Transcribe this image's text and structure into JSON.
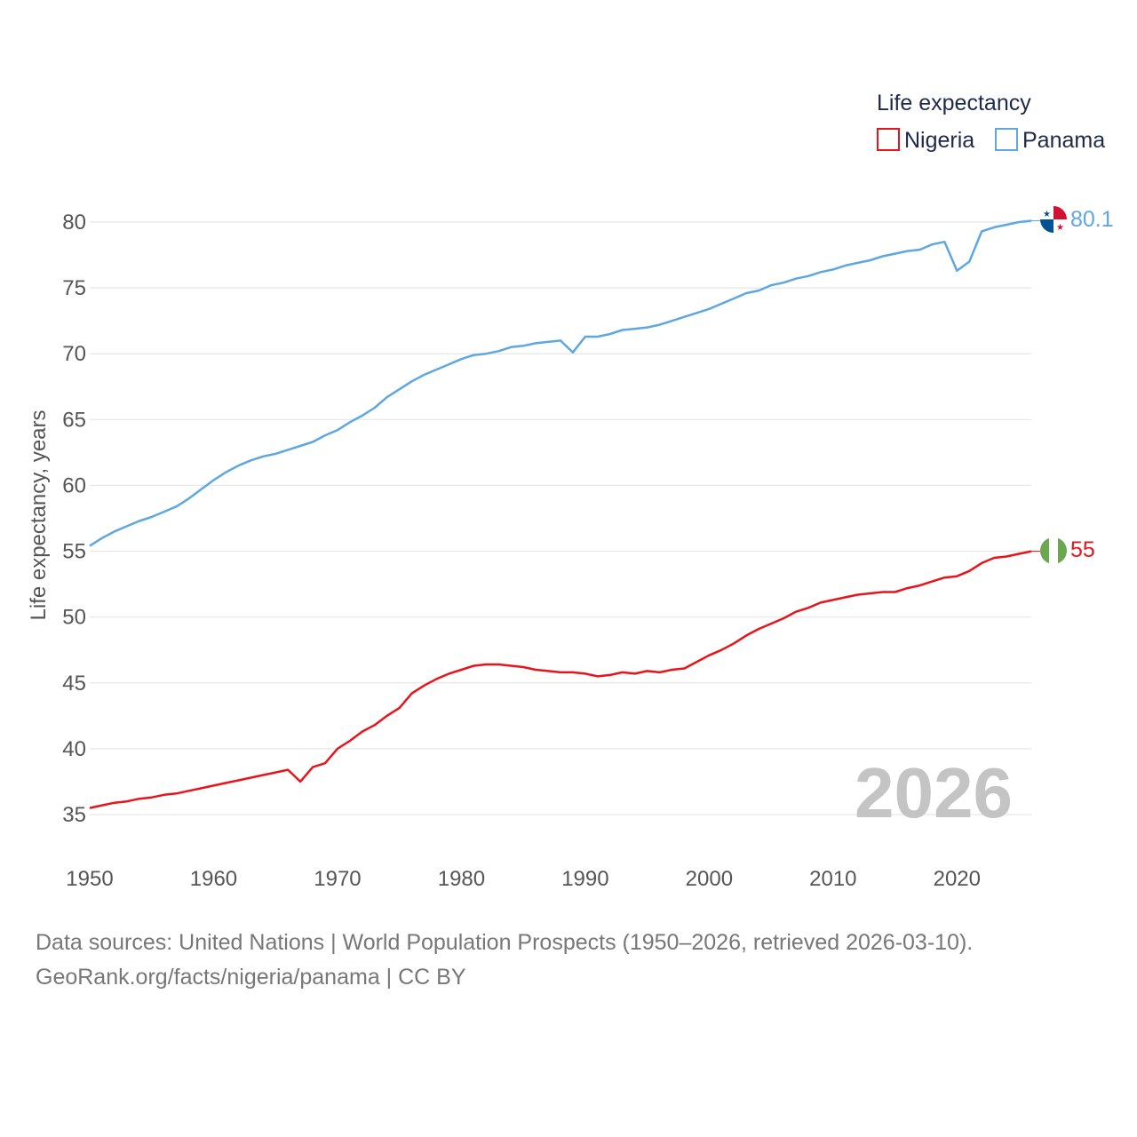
{
  "chart_data": {
    "type": "line",
    "legend_title": "Life expectancy",
    "ylabel": "Life expectancy, years",
    "xlim": [
      1950,
      2026
    ],
    "ylim": [
      32,
      83
    ],
    "yticks": [
      35,
      40,
      45,
      50,
      55,
      60,
      65,
      70,
      75,
      80
    ],
    "xticks": [
      1950,
      1960,
      1970,
      1980,
      1990,
      2000,
      2010,
      2020
    ],
    "year_label": "2026",
    "series": [
      {
        "name": "Nigeria",
        "color": "#e8141c",
        "end_label": "55",
        "x": [
          1950,
          1951,
          1952,
          1953,
          1954,
          1955,
          1956,
          1957,
          1958,
          1959,
          1960,
          1961,
          1962,
          1963,
          1964,
          1965,
          1966,
          1967,
          1968,
          1969,
          1970,
          1971,
          1972,
          1973,
          1974,
          1975,
          1976,
          1977,
          1978,
          1979,
          1980,
          1981,
          1982,
          1983,
          1984,
          1985,
          1986,
          1987,
          1988,
          1989,
          1990,
          1991,
          1992,
          1993,
          1994,
          1995,
          1996,
          1997,
          1998,
          1999,
          2000,
          2001,
          2002,
          2003,
          2004,
          2005,
          2006,
          2007,
          2008,
          2009,
          2010,
          2011,
          2012,
          2013,
          2014,
          2015,
          2016,
          2017,
          2018,
          2019,
          2020,
          2021,
          2022,
          2023,
          2024,
          2025,
          2026
        ],
        "y": [
          35.5,
          35.7,
          35.9,
          36.0,
          36.2,
          36.3,
          36.5,
          36.6,
          36.8,
          37.0,
          37.2,
          37.4,
          37.6,
          37.8,
          38.0,
          38.2,
          38.4,
          37.5,
          38.6,
          38.9,
          40.0,
          40.6,
          41.3,
          41.8,
          42.5,
          43.1,
          44.2,
          44.8,
          45.3,
          45.7,
          46.0,
          46.3,
          46.4,
          46.4,
          46.3,
          46.2,
          46.0,
          45.9,
          45.8,
          45.8,
          45.7,
          45.5,
          45.6,
          45.8,
          45.7,
          45.9,
          45.8,
          46.0,
          46.1,
          46.6,
          47.1,
          47.5,
          48.0,
          48.6,
          49.1,
          49.5,
          49.9,
          50.4,
          50.7,
          51.1,
          51.3,
          51.5,
          51.7,
          51.8,
          51.9,
          51.9,
          52.2,
          52.4,
          52.7,
          53.0,
          53.1,
          53.5,
          54.1,
          54.5,
          54.6,
          54.8,
          55.0
        ]
      },
      {
        "name": "Panama",
        "color": "#5ea7e0",
        "end_label": "80.1",
        "x": [
          1950,
          1951,
          1952,
          1953,
          1954,
          1955,
          1956,
          1957,
          1958,
          1959,
          1960,
          1961,
          1962,
          1963,
          1964,
          1965,
          1966,
          1967,
          1968,
          1969,
          1970,
          1971,
          1972,
          1973,
          1974,
          1975,
          1976,
          1977,
          1978,
          1979,
          1980,
          1981,
          1982,
          1983,
          1984,
          1985,
          1986,
          1987,
          1988,
          1989,
          1990,
          1991,
          1992,
          1993,
          1994,
          1995,
          1996,
          1997,
          1998,
          1999,
          2000,
          2001,
          2002,
          2003,
          2004,
          2005,
          2006,
          2007,
          2008,
          2009,
          2010,
          2011,
          2012,
          2013,
          2014,
          2015,
          2016,
          2017,
          2018,
          2019,
          2020,
          2021,
          2022,
          2023,
          2024,
          2025,
          2026
        ],
        "y": [
          55.4,
          56.0,
          56.5,
          56.9,
          57.3,
          57.6,
          58.0,
          58.4,
          59.0,
          59.7,
          60.4,
          61.0,
          61.5,
          61.9,
          62.2,
          62.4,
          62.7,
          63.0,
          63.3,
          63.8,
          64.2,
          64.8,
          65.3,
          65.9,
          66.7,
          67.3,
          67.9,
          68.4,
          68.8,
          69.2,
          69.6,
          69.9,
          70.0,
          70.2,
          70.5,
          70.6,
          70.8,
          70.9,
          71.0,
          70.1,
          71.3,
          71.3,
          71.5,
          71.8,
          71.9,
          72.0,
          72.2,
          72.5,
          72.8,
          73.1,
          73.4,
          73.8,
          74.2,
          74.6,
          74.8,
          75.2,
          75.4,
          75.7,
          75.9,
          76.2,
          76.4,
          76.7,
          76.9,
          77.1,
          77.4,
          77.6,
          77.8,
          77.9,
          78.3,
          78.5,
          76.3,
          77.0,
          79.3,
          79.6,
          79.8,
          80.0,
          80.1
        ]
      }
    ]
  },
  "footer": {
    "line1": "Data sources: United Nations | World Population Prospects (1950–2026, retrieved 2026-03-10).",
    "line2": "GeoRank.org/facts/nigeria/panama | CC BY"
  }
}
